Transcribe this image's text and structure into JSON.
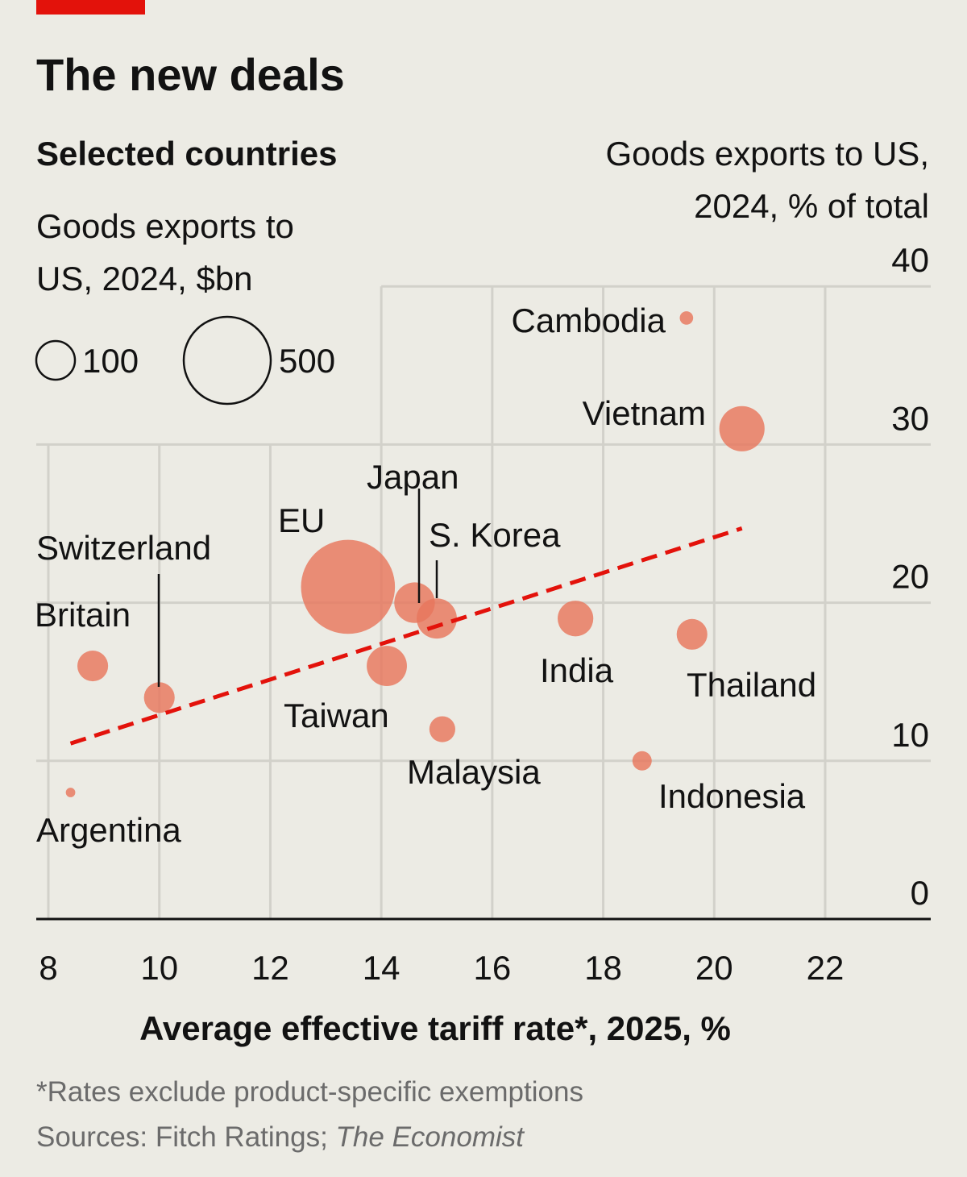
{
  "title": "The new deals",
  "subtitle": "Selected countries",
  "size_legend": {
    "title_line1": "Goods exports to",
    "title_line2": "US, 2024, $bn",
    "items": [
      {
        "value": 100,
        "label": "100"
      },
      {
        "value": 500,
        "label": "500"
      }
    ]
  },
  "y_title_line1": "Goods exports to US,",
  "y_title_line2": "2024, % of total",
  "footnote": "*Rates exclude product-specific exemptions",
  "sources_prefix": "Sources: Fitch Ratings; ",
  "sources_italic": "The Economist",
  "colors": {
    "accent": "#e3120b",
    "bubble": "#e8765d",
    "trend": "#e3120b",
    "background": "#ecebe4"
  },
  "chart_data": {
    "type": "scatter",
    "xlabel": "Average effective tariff rate*, 2025, %",
    "ylabel": "Goods exports to US, 2024, % of total",
    "xlim": [
      8,
      23.5
    ],
    "ylim": [
      0,
      40
    ],
    "x_ticks": [
      "8",
      "10",
      "12",
      "14",
      "16",
      "18",
      "20",
      "22"
    ],
    "y_ticks": [
      "0",
      "10",
      "20",
      "30",
      "40"
    ],
    "grid": true,
    "size_variable": "Goods exports to US, 2024, $bn",
    "points": [
      {
        "name": "Cambodia",
        "x": 19.5,
        "y": 38,
        "size": 12
      },
      {
        "name": "Vietnam",
        "x": 20.5,
        "y": 31,
        "size": 137
      },
      {
        "name": "EU",
        "x": 13.4,
        "y": 21,
        "size": 590
      },
      {
        "name": "Japan",
        "x": 14.6,
        "y": 20,
        "size": 110
      },
      {
        "name": "S. Korea",
        "x": 15.0,
        "y": 19,
        "size": 108
      },
      {
        "name": "India",
        "x": 17.5,
        "y": 19,
        "size": 85
      },
      {
        "name": "Thailand",
        "x": 19.6,
        "y": 18,
        "size": 63
      },
      {
        "name": "Britain",
        "x": 8.8,
        "y": 16,
        "size": 63
      },
      {
        "name": "Taiwan",
        "x": 14.1,
        "y": 16,
        "size": 108
      },
      {
        "name": "Switzerland",
        "x": 10.0,
        "y": 14,
        "size": 63
      },
      {
        "name": "Malaysia",
        "x": 15.1,
        "y": 12,
        "size": 45
      },
      {
        "name": "Indonesia",
        "x": 18.7,
        "y": 10,
        "size": 25
      },
      {
        "name": "Argentina",
        "x": 8.4,
        "y": 8,
        "size": 6
      }
    ],
    "trendline": {
      "style": "dashed",
      "x": [
        8.4,
        20.5
      ],
      "y": [
        11.1,
        24.7
      ]
    }
  }
}
